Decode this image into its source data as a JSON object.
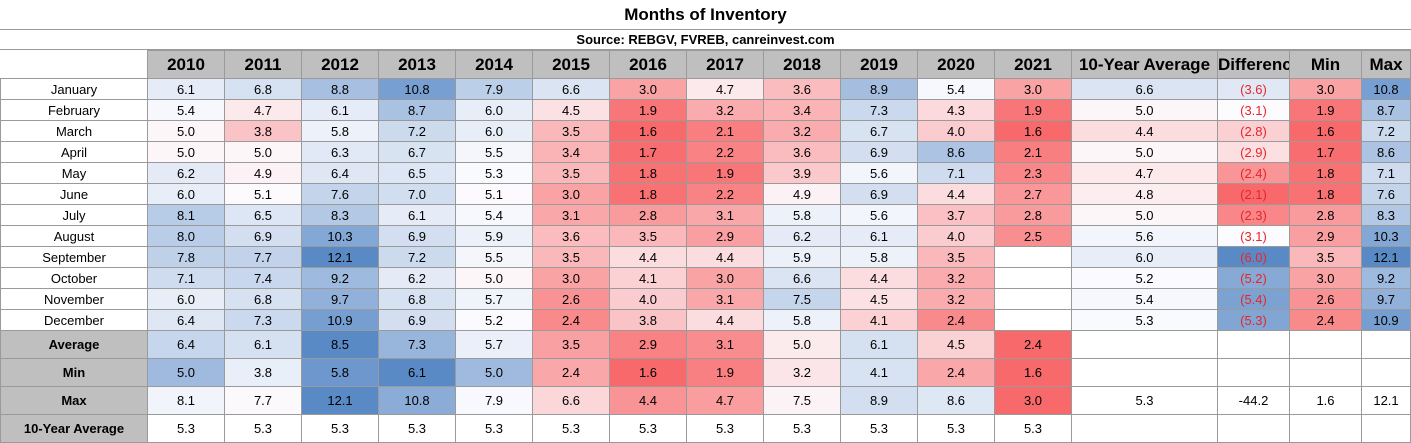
{
  "chart_data": {
    "type": "table",
    "title": "Months of Inventory",
    "subtitle": "Source: REBGV, FVREB, canreinvest.com",
    "columns": [
      "2010",
      "2011",
      "2012",
      "2013",
      "2014",
      "2015",
      "2016",
      "2017",
      "2018",
      "2019",
      "2020",
      "2021",
      "10-Year Average",
      "Difference",
      "Min",
      "Max"
    ],
    "rows": [
      {
        "label": "January",
        "values": [
          "6.1",
          "6.8",
          "8.8",
          "10.8",
          "7.9",
          "6.6",
          "3.0",
          "4.7",
          "3.6",
          "8.9",
          "5.4",
          "3.0",
          "6.6",
          "(3.6)",
          "3.0",
          "10.8"
        ]
      },
      {
        "label": "February",
        "values": [
          "5.4",
          "4.7",
          "6.1",
          "8.7",
          "6.0",
          "4.5",
          "1.9",
          "3.2",
          "3.4",
          "7.3",
          "4.3",
          "1.9",
          "5.0",
          "(3.1)",
          "1.9",
          "8.7"
        ]
      },
      {
        "label": "March",
        "values": [
          "5.0",
          "3.8",
          "5.8",
          "7.2",
          "6.0",
          "3.5",
          "1.6",
          "2.1",
          "3.2",
          "6.7",
          "4.0",
          "1.6",
          "4.4",
          "(2.8)",
          "1.6",
          "7.2"
        ]
      },
      {
        "label": "April",
        "values": [
          "5.0",
          "5.0",
          "6.3",
          "6.7",
          "5.5",
          "3.4",
          "1.7",
          "2.2",
          "3.6",
          "6.9",
          "8.6",
          "2.1",
          "5.0",
          "(2.9)",
          "1.7",
          "8.6"
        ]
      },
      {
        "label": "May",
        "values": [
          "6.2",
          "4.9",
          "6.4",
          "6.5",
          "5.3",
          "3.5",
          "1.8",
          "1.9",
          "3.9",
          "5.6",
          "7.1",
          "2.3",
          "4.7",
          "(2.4)",
          "1.8",
          "7.1"
        ]
      },
      {
        "label": "June",
        "values": [
          "6.0",
          "5.1",
          "7.6",
          "7.0",
          "5.1",
          "3.0",
          "1.8",
          "2.2",
          "4.9",
          "6.9",
          "4.4",
          "2.7",
          "4.8",
          "(2.1)",
          "1.8",
          "7.6"
        ]
      },
      {
        "label": "July",
        "values": [
          "8.1",
          "6.5",
          "8.3",
          "6.1",
          "5.4",
          "3.1",
          "2.8",
          "3.1",
          "5.8",
          "5.6",
          "3.7",
          "2.8",
          "5.0",
          "(2.3)",
          "2.8",
          "8.3"
        ]
      },
      {
        "label": "August",
        "values": [
          "8.0",
          "6.9",
          "10.3",
          "6.9",
          "5.9",
          "3.6",
          "3.5",
          "2.9",
          "6.2",
          "6.1",
          "4.0",
          "2.5",
          "5.6",
          "(3.1)",
          "2.9",
          "10.3"
        ]
      },
      {
        "label": "September",
        "values": [
          "7.8",
          "7.7",
          "12.1",
          "7.2",
          "5.5",
          "3.5",
          "4.4",
          "4.4",
          "5.9",
          "5.8",
          "3.5",
          "",
          "6.0",
          "(6.0)",
          "3.5",
          "12.1"
        ]
      },
      {
        "label": "October",
        "values": [
          "7.1",
          "7.4",
          "9.2",
          "6.2",
          "5.0",
          "3.0",
          "4.1",
          "3.0",
          "6.6",
          "4.4",
          "3.2",
          "",
          "5.2",
          "(5.2)",
          "3.0",
          "9.2"
        ]
      },
      {
        "label": "November",
        "values": [
          "6.0",
          "6.8",
          "9.7",
          "6.8",
          "5.7",
          "2.6",
          "4.0",
          "3.1",
          "7.5",
          "4.5",
          "3.2",
          "",
          "5.4",
          "(5.4)",
          "2.6",
          "9.7"
        ]
      },
      {
        "label": "December",
        "values": [
          "6.4",
          "7.3",
          "10.9",
          "6.9",
          "5.2",
          "2.4",
          "3.8",
          "4.4",
          "5.8",
          "4.1",
          "2.4",
          "",
          "5.3",
          "(5.3)",
          "2.4",
          "10.9"
        ]
      }
    ],
    "summary_rows": [
      {
        "label": "Average",
        "values": [
          "6.4",
          "6.1",
          "8.5",
          "7.3",
          "5.7",
          "3.5",
          "2.9",
          "3.1",
          "5.0",
          "6.1",
          "4.5",
          "2.4",
          "",
          "",
          "",
          ""
        ]
      },
      {
        "label": "Min",
        "values": [
          "5.0",
          "3.8",
          "5.8",
          "6.1",
          "5.0",
          "2.4",
          "1.6",
          "1.9",
          "3.2",
          "4.1",
          "2.4",
          "1.6",
          "",
          "",
          "",
          ""
        ]
      },
      {
        "label": "Max",
        "values": [
          "8.1",
          "7.7",
          "12.1",
          "10.8",
          "7.9",
          "6.6",
          "4.4",
          "4.7",
          "7.5",
          "8.9",
          "8.6",
          "3.0",
          "5.3",
          "-44.2",
          "1.6",
          "12.1"
        ]
      },
      {
        "label": "10-Year Average",
        "values": [
          "5.3",
          "5.3",
          "5.3",
          "5.3",
          "5.3",
          "5.3",
          "5.3",
          "5.3",
          "5.3",
          "5.3",
          "5.3",
          "5.3",
          "",
          "",
          "",
          ""
        ]
      }
    ],
    "color_scale": {
      "low": "#f8696b",
      "mid": "#fcfcff",
      "high": "#5a8ac6"
    }
  }
}
